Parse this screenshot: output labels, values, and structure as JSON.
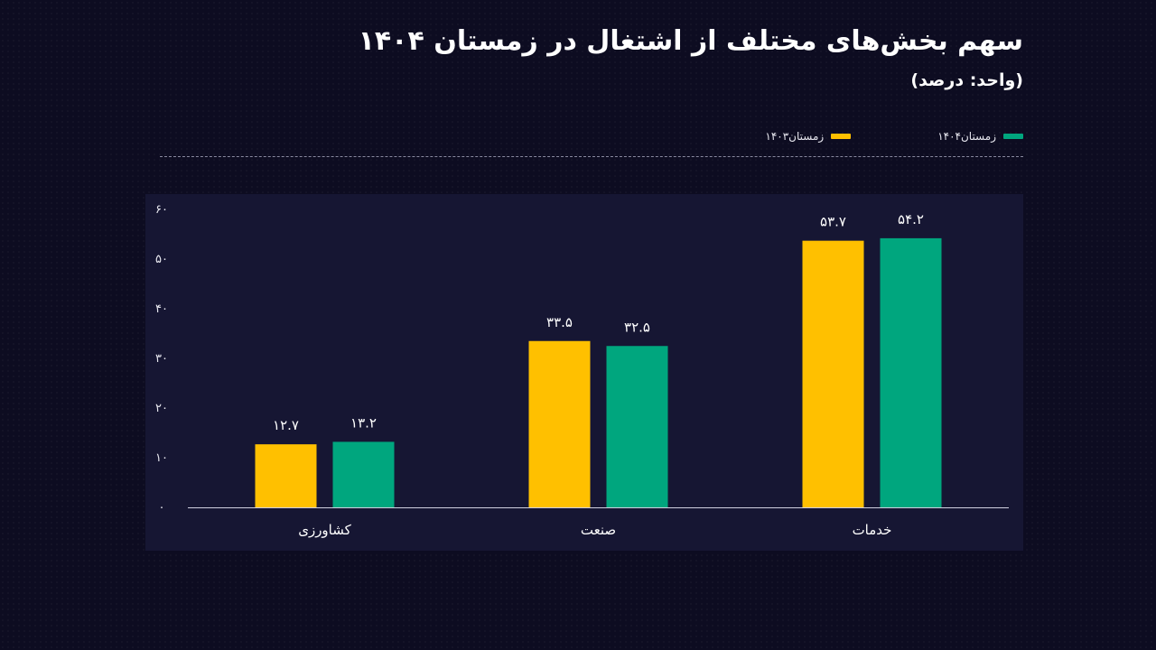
{
  "header": {
    "title": "سهم بخش‌های مختلف از اشتغال در زمستان ۱۴۰۴",
    "subtitle": "(واحد: درصد)"
  },
  "legend": {
    "items": [
      {
        "label": "زمستان۱۴۰۴",
        "color": "#00a67e"
      },
      {
        "label": "زمستان۱۴۰۳",
        "color": "#ffc000"
      }
    ]
  },
  "chart_data": {
    "type": "bar",
    "categories": [
      "کشاورزی",
      "صنعت",
      "خدمات"
    ],
    "series": [
      {
        "name": "زمستان۱۴۰۳",
        "color": "#ffc000",
        "values": [
          12.7,
          33.5,
          53.7
        ],
        "labels": [
          "۱۲.۷",
          "۳۳.۵",
          "۵۳.۷"
        ]
      },
      {
        "name": "زمستان۱۴۰۴",
        "color": "#00a67e",
        "values": [
          13.2,
          32.5,
          54.2
        ],
        "labels": [
          "۱۳.۲",
          "۳۲.۵",
          "۵۴.۲"
        ]
      }
    ],
    "ylim": [
      0,
      60
    ],
    "yticks": [
      0,
      10,
      20,
      30,
      40,
      50,
      60
    ],
    "ytick_labels": [
      "۰",
      "۱۰",
      "۲۰",
      "۳۰",
      "۴۰",
      "۵۰",
      "۶۰"
    ],
    "grid": false,
    "legend_position": "top-right"
  }
}
